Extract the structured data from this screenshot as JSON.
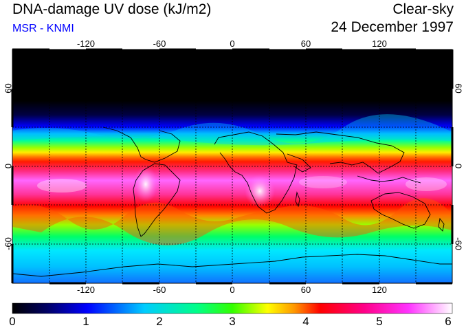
{
  "header": {
    "title": "DNA-damage UV dose (kJ/m2)",
    "source": "MSR - KNMI",
    "condition": "Clear-sky",
    "date": "24 December 1997"
  },
  "colors": {
    "source_text": "#0000ff",
    "colormap": [
      "#000000",
      "#000066",
      "#0000ff",
      "#00c8ff",
      "#00ff88",
      "#33ff00",
      "#ffff00",
      "#ff9900",
      "#ff0000",
      "#ff0088",
      "#ff33ff",
      "#ffffff"
    ]
  },
  "map": {
    "lon_ticks": [
      "-120",
      "-60",
      "0",
      "60",
      "120"
    ],
    "lon_values": [
      -120,
      -60,
      0,
      60,
      120
    ],
    "lat_ticks": [
      "60",
      "0",
      "-60"
    ],
    "lat_values": [
      60,
      0,
      -60
    ],
    "lon_range": [
      -180,
      180
    ],
    "lat_range": [
      -90,
      90
    ]
  },
  "colorbar": {
    "min": 0,
    "max": 6,
    "labels": [
      "0",
      "1",
      "2",
      "3",
      "4",
      "5",
      "6"
    ]
  }
}
